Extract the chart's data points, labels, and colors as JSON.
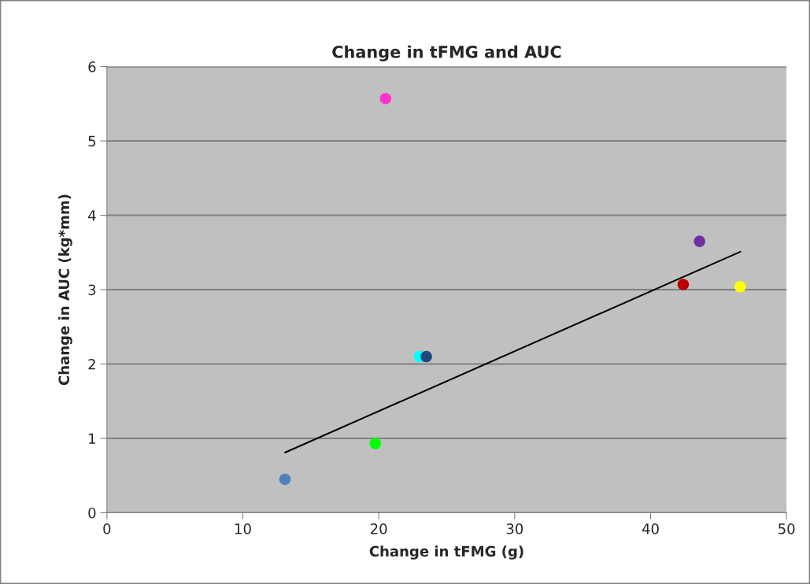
{
  "chart_data": {
    "type": "scatter",
    "title": "Change in tFMG and AUC",
    "xlabel": "Change in tFMG (g)",
    "ylabel": "Change in AUC (kg*mm)",
    "xlim": [
      0,
      50
    ],
    "xticks": [
      0,
      10,
      20,
      30,
      40,
      50
    ],
    "ylim": [
      0,
      6
    ],
    "yticks": [
      0,
      1,
      2,
      3,
      4,
      5,
      6
    ],
    "grid": "y",
    "marker": "circle",
    "series": [
      {
        "x": [
          13.1,
          19.75,
          20.5,
          23.0,
          23.5,
          42.4,
          43.6,
          46.6
        ],
        "values": [
          0.45,
          0.93,
          5.57,
          2.1,
          2.1,
          3.07,
          3.65,
          3.04
        ],
        "colors": [
          "#4f81bd",
          "#00ff00",
          "#ff33cc",
          "#00ffff",
          "#1f497d",
          "#c00000",
          "#7030a0",
          "#ffff00"
        ]
      },
      {
        "type": "line",
        "x": [
          13.1,
          46.6
        ],
        "values": [
          0.81,
          3.51
        ],
        "color": "#000000",
        "line_style": "solid",
        "marker": "none"
      }
    ]
  }
}
